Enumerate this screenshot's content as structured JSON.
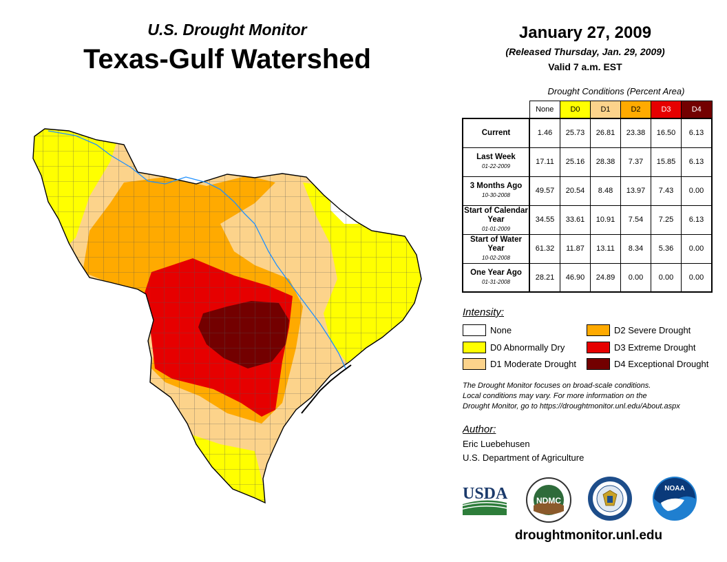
{
  "header": {
    "supertitle": "U.S. Drought Monitor",
    "title": "Texas-Gulf Watershed",
    "date": "January 27, 2009",
    "released": "(Released Thursday, Jan. 29, 2009)",
    "valid": "Valid 7 a.m. EST"
  },
  "table": {
    "caption": "Drought Conditions (Percent Area)",
    "columns": [
      "None",
      "D0",
      "D1",
      "D2",
      "D3",
      "D4"
    ],
    "rows": [
      {
        "label": "Current",
        "date": "",
        "values": [
          "1.46",
          "25.73",
          "26.81",
          "23.38",
          "16.50",
          "6.13"
        ]
      },
      {
        "label": "Last Week",
        "date": "01-22-2009",
        "values": [
          "17.11",
          "25.16",
          "28.38",
          "7.37",
          "15.85",
          "6.13"
        ]
      },
      {
        "label": "3 Months Ago",
        "date": "10-30-2008",
        "values": [
          "49.57",
          "20.54",
          "8.48",
          "13.97",
          "7.43",
          "0.00"
        ]
      },
      {
        "label": "Start of Calendar Year",
        "date": "01-01-2009",
        "values": [
          "34.55",
          "33.61",
          "10.91",
          "7.54",
          "7.25",
          "6.13"
        ]
      },
      {
        "label": "Start of Water Year",
        "date": "10-02-2008",
        "values": [
          "61.32",
          "11.87",
          "13.11",
          "8.34",
          "5.36",
          "0.00"
        ]
      },
      {
        "label": "One Year Ago",
        "date": "01-31-2008",
        "values": [
          "28.21",
          "46.90",
          "24.89",
          "0.00",
          "0.00",
          "0.00"
        ]
      }
    ]
  },
  "legend": {
    "title": "Intensity:",
    "items": [
      {
        "label": "None",
        "color": "#ffffff"
      },
      {
        "label": "D0 Abnormally Dry",
        "color": "#ffff00"
      },
      {
        "label": "D1 Moderate Drought",
        "color": "#fcd38b"
      },
      {
        "label": "D2 Severe Drought",
        "color": "#ffaa00"
      },
      {
        "label": "D3 Extreme Drought",
        "color": "#e60000"
      },
      {
        "label": "D4 Exceptional Drought",
        "color": "#730000"
      }
    ]
  },
  "note": {
    "line1": "The Drought Monitor focuses on broad-scale conditions.",
    "line2": "Local conditions may vary. For more information on the",
    "line3": "Drought Monitor, go to https://droughtmonitor.unl.edu/About.aspx"
  },
  "author": {
    "label": "Author:",
    "name": "Eric Luebehusen",
    "org": "U.S. Department of Agriculture"
  },
  "logos": {
    "usda": "USDA",
    "ndmc": "NDMC",
    "noaa": "NOAA"
  },
  "footer": {
    "url": "droughtmonitor.unl.edu"
  },
  "colors": {
    "d0": "#ffff00",
    "d1": "#fcd38b",
    "d2": "#ffaa00",
    "d3": "#e60000",
    "d4": "#730000",
    "river": "#1e90ff"
  }
}
